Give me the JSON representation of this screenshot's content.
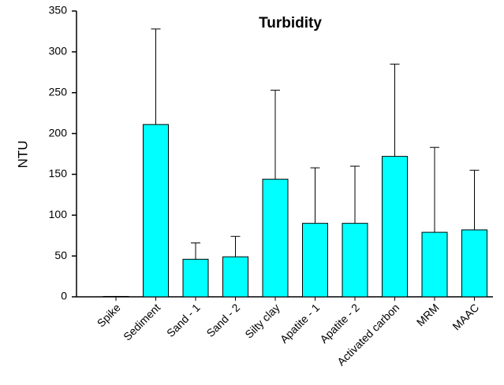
{
  "chart_data": {
    "type": "bar",
    "title": "Turbidity",
    "y_label": "NTU",
    "categories": [
      "Spike",
      "Sediment",
      "Sand - 1",
      "Sand - 2",
      "Silty clay",
      "Apatite - 1",
      "Apatite - 2",
      "Activated carbon",
      "MRM",
      "MAAC"
    ],
    "values": [
      0.5,
      211,
      46,
      49,
      144,
      90,
      90,
      172,
      79,
      82
    ],
    "errors": [
      0,
      117,
      20,
      25,
      109,
      68,
      70,
      113,
      104,
      73
    ],
    "color": "#00ffff",
    "ylim": [
      0,
      350
    ],
    "yticks": [
      0,
      50,
      100,
      150,
      200,
      250,
      300,
      350
    ],
    "grid": false
  }
}
